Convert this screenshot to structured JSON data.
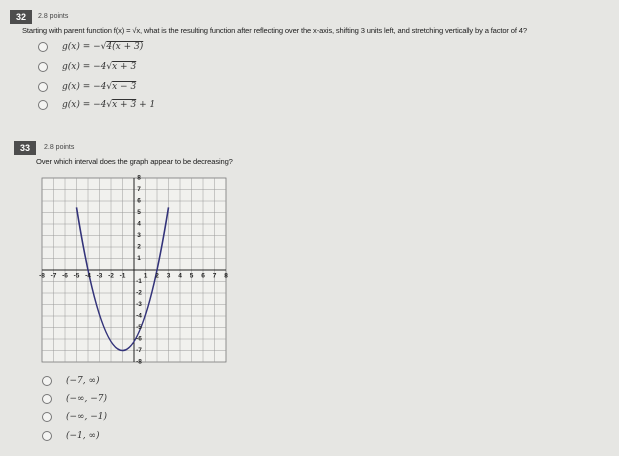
{
  "q32": {
    "number": "32",
    "points": "2.8 points",
    "text": "Starting with parent function f(x) = √x, what is the resulting function after reflecting over the x-axis, shifting 3 units left, and stretching vertically by a factor of 4?",
    "options": [
      {
        "prefix": "g(x) = −√",
        "radicand": "4(x + 3)"
      },
      {
        "prefix": "g(x) = −4√",
        "radicand": "x + 3"
      },
      {
        "prefix": "g(x) = −4√",
        "radicand": "x − 3"
      },
      {
        "prefix": "g(x) = −4√",
        "radicand": "x + 3",
        "suffix": " + 1"
      }
    ]
  },
  "q33": {
    "number": "33",
    "points": "2.8 points",
    "text": "Over which interval does the graph appear to be decreasing?",
    "graph": {
      "x_labels": [
        "-8",
        "-7",
        "-6",
        "-5",
        "-4",
        "-3",
        "-2",
        "-1",
        "1",
        "2",
        "3",
        "4",
        "5",
        "6",
        "7",
        "8"
      ],
      "y_labels": [
        "8",
        "7",
        "6",
        "5",
        "4",
        "3",
        "2",
        "1",
        "-1",
        "-2",
        "-3",
        "-4",
        "-5",
        "-6",
        "-7",
        "-8"
      ]
    },
    "options": [
      "(−7, ∞)",
      "(−∞, −7)",
      "(−∞, −1)",
      "(−1, ∞)"
    ]
  }
}
